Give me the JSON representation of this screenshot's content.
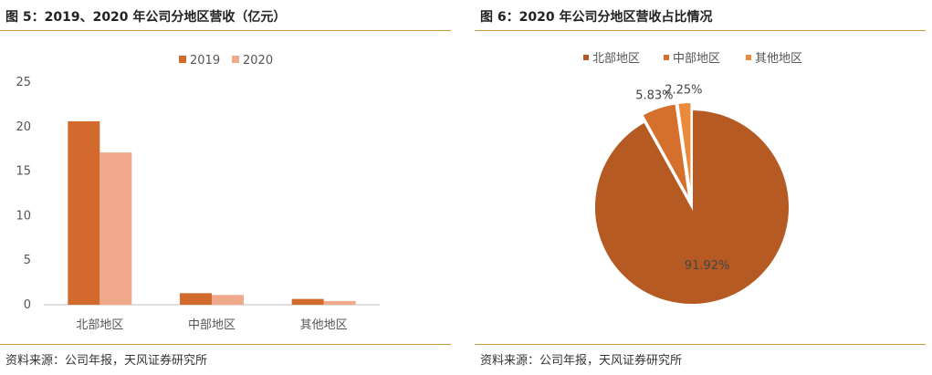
{
  "left": {
    "title": "图 5：2019、2020 年公司分地区营收（亿元）",
    "source": "资料来源：公司年报，天风证券研究所"
  },
  "right": {
    "title": "图 6：2020 年公司分地区营收占比情况",
    "source": "资料来源：公司年报，天风证券研究所"
  },
  "chart_data": [
    {
      "type": "bar",
      "title": "",
      "xlabel": "",
      "ylabel": "",
      "categories": [
        "北部地区",
        "中部地区",
        "其他地区"
      ],
      "series": [
        {
          "name": "2019",
          "values": [
            20.6,
            1.3,
            0.65
          ],
          "color": "#d2692d"
        },
        {
          "name": "2020",
          "values": [
            17.1,
            1.1,
            0.42
          ],
          "color": "#f0a98a"
        }
      ],
      "ylim": [
        0,
        25
      ],
      "yticks": [
        0,
        5,
        10,
        15,
        20,
        25
      ],
      "legend": "top-center",
      "grid": false
    },
    {
      "type": "pie",
      "title": "",
      "labels": [
        "北部地区",
        "中部地区",
        "其他地区"
      ],
      "values": [
        91.92,
        5.83,
        2.25
      ],
      "value_labels": [
        "91.92%",
        "5.83%",
        "2.25%"
      ],
      "colors": [
        "#b55a22",
        "#d56f2c",
        "#ea8a3c"
      ],
      "legend": "top-center"
    }
  ]
}
